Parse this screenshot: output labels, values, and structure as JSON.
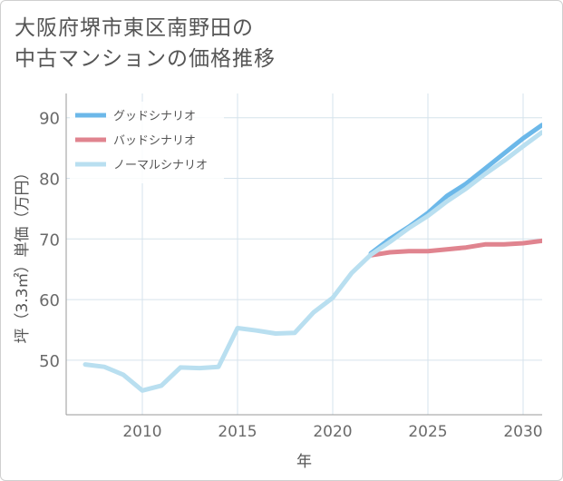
{
  "title_lines": [
    "大阪府堺市東区南野田の",
    "中古マンションの価格推移"
  ],
  "chart_data": {
    "type": "line",
    "title": "大阪府堺市東区南野田の中古マンションの価格推移",
    "xlabel": "年",
    "ylabel": "坪（3.3㎡）単価（万円）",
    "xlim": [
      2006,
      2031
    ],
    "ylim": [
      41,
      94
    ],
    "xticks": [
      2010,
      2015,
      2020,
      2025,
      2030
    ],
    "yticks": [
      50,
      60,
      70,
      80,
      90
    ],
    "grid": true,
    "legend_position": "top-left",
    "series": [
      {
        "name": "グッドシナリオ",
        "color": "#6cb8e9",
        "x": [
          2022,
          2023,
          2024,
          2025,
          2026,
          2027,
          2028,
          2029,
          2030,
          2031
        ],
        "values": [
          67.6,
          70.0,
          72.0,
          74.3,
          77.1,
          79.1,
          81.6,
          84.1,
          86.6,
          88.8
        ]
      },
      {
        "name": "バッドシナリオ",
        "color": "#e0848f",
        "x": [
          2022,
          2023,
          2024,
          2025,
          2026,
          2027,
          2028,
          2029,
          2030,
          2031
        ],
        "values": [
          67.3,
          67.8,
          68.0,
          68.0,
          68.3,
          68.6,
          69.1,
          69.1,
          69.3,
          69.7
        ]
      },
      {
        "name": "ノーマルシナリオ",
        "color": "#b9dff0",
        "x": [
          2007,
          2008,
          2009,
          2010,
          2011,
          2012,
          2013,
          2014,
          2015,
          2016,
          2017,
          2018,
          2019,
          2020,
          2021,
          2022,
          2023,
          2024,
          2025,
          2026,
          2027,
          2028,
          2029,
          2030,
          2031
        ],
        "values": [
          49.3,
          48.9,
          47.6,
          45.0,
          45.8,
          48.8,
          48.7,
          48.9,
          55.3,
          54.9,
          54.4,
          54.5,
          57.9,
          60.3,
          64.4,
          67.4,
          69.5,
          71.8,
          73.8,
          76.2,
          78.3,
          80.7,
          82.9,
          85.3,
          87.6
        ]
      }
    ]
  }
}
